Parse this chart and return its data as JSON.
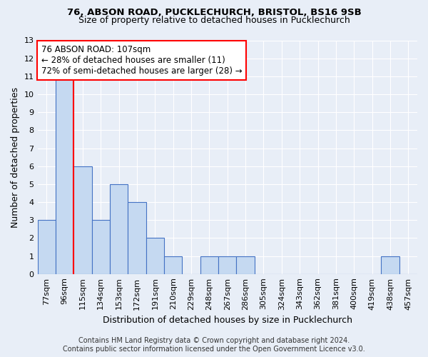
{
  "title1": "76, ABSON ROAD, PUCKLECHURCH, BRISTOL, BS16 9SB",
  "title2": "Size of property relative to detached houses in Pucklechurch",
  "xlabel": "Distribution of detached houses by size in Pucklechurch",
  "ylabel": "Number of detached properties",
  "footer1": "Contains HM Land Registry data © Crown copyright and database right 2024.",
  "footer2": "Contains public sector information licensed under the Open Government Licence v3.0.",
  "categories": [
    "77sqm",
    "96sqm",
    "115sqm",
    "134sqm",
    "153sqm",
    "172sqm",
    "191sqm",
    "210sqm",
    "229sqm",
    "248sqm",
    "267sqm",
    "286sqm",
    "305sqm",
    "324sqm",
    "343sqm",
    "362sqm",
    "381sqm",
    "400sqm",
    "419sqm",
    "438sqm",
    "457sqm"
  ],
  "values": [
    3,
    11,
    6,
    3,
    5,
    4,
    2,
    1,
    0,
    1,
    1,
    1,
    0,
    0,
    0,
    0,
    0,
    0,
    0,
    1,
    0
  ],
  "bar_color": "#c5d9f1",
  "bar_edge_color": "#4472c4",
  "vline_x": 1.5,
  "vline_color": "red",
  "annotation_line1": "76 ABSON ROAD: 107sqm",
  "annotation_line2": "← 28% of detached houses are smaller (11)",
  "annotation_line3": "72% of semi-detached houses are larger (28) →",
  "annotation_box_color": "white",
  "annotation_box_edge_color": "red",
  "ylim": [
    0,
    13
  ],
  "yticks": [
    0,
    1,
    2,
    3,
    4,
    5,
    6,
    7,
    8,
    9,
    10,
    11,
    12,
    13
  ],
  "bg_color": "#e8eef7",
  "grid_color": "white",
  "title1_fontsize": 9.5,
  "title2_fontsize": 9,
  "ylabel_fontsize": 9,
  "xlabel_fontsize": 9,
  "tick_fontsize": 8,
  "annotation_fontsize": 8.5,
  "footer_fontsize": 7
}
